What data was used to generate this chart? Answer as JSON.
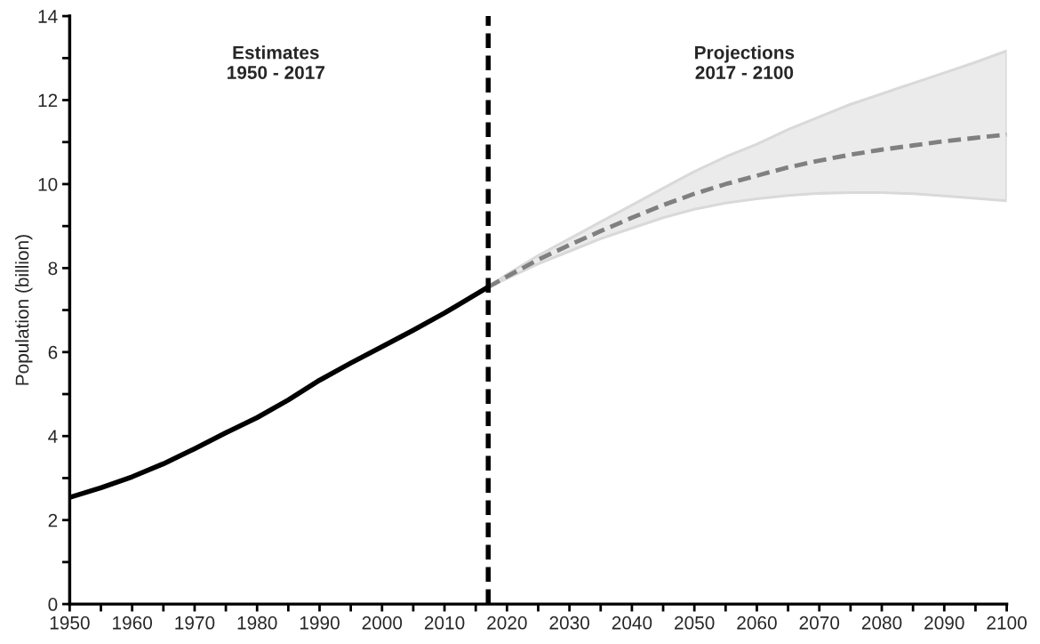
{
  "chart_data": {
    "type": "line",
    "ylabel": "Population (billion)",
    "xlim": [
      1950,
      2100
    ],
    "ylim": [
      0,
      14
    ],
    "xticks": [
      1950,
      {
        "value": 1955,
        "label": null
      },
      1960,
      {
        "value": 1965,
        "label": null
      },
      1970,
      {
        "value": 1975,
        "label": null
      },
      1980,
      {
        "value": 1985,
        "label": null
      },
      1990,
      {
        "value": 1995,
        "label": null
      },
      2000,
      {
        "value": 2005,
        "label": null
      },
      2010,
      {
        "value": 2015,
        "label": null
      },
      2020,
      {
        "value": 2025,
        "label": null
      },
      2030,
      {
        "value": 2035,
        "label": null
      },
      2040,
      {
        "value": 2045,
        "label": null
      },
      2050,
      {
        "value": 2055,
        "label": null
      },
      2060,
      {
        "value": 2065,
        "label": null
      },
      2070,
      {
        "value": 2075,
        "label": null
      },
      2080,
      {
        "value": 2085,
        "label": null
      },
      2090,
      {
        "value": 2095,
        "label": null
      },
      2100
    ],
    "yticks": [
      0,
      {
        "value": 1,
        "label": null
      },
      2,
      {
        "value": 3,
        "label": null
      },
      4,
      {
        "value": 5,
        "label": null
      },
      6,
      {
        "value": 7,
        "label": null
      },
      8,
      {
        "value": 9,
        "label": null
      },
      10,
      {
        "value": 11,
        "label": null
      },
      12,
      {
        "value": 13,
        "label": null
      },
      14
    ],
    "grid": false,
    "legend": false,
    "series": [
      {
        "color": "#000000",
        "line_style": "solid",
        "x": [
          1950,
          1955,
          1960,
          1965,
          1970,
          1975,
          1980,
          1985,
          1990,
          1995,
          2000,
          2005,
          2010,
          2017
        ],
        "values": [
          2.54,
          2.77,
          3.03,
          3.34,
          3.7,
          4.08,
          4.44,
          4.86,
          5.33,
          5.74,
          6.13,
          6.52,
          6.93,
          7.55
        ]
      },
      {
        "color": "#808080",
        "line_style": "dashed",
        "x": [
          2017,
          2020,
          2025,
          2030,
          2035,
          2040,
          2045,
          2050,
          2055,
          2060,
          2065,
          2070,
          2075,
          2080,
          2085,
          2090,
          2095,
          2100
        ],
        "values": [
          7.55,
          7.8,
          8.2,
          8.55,
          8.88,
          9.2,
          9.5,
          9.77,
          10.0,
          10.2,
          10.4,
          10.56,
          10.7,
          10.82,
          10.92,
          11.02,
          11.1,
          11.18
        ],
        "lower": [
          7.55,
          7.75,
          8.1,
          8.4,
          8.7,
          8.95,
          9.2,
          9.4,
          9.55,
          9.65,
          9.73,
          9.78,
          9.8,
          9.8,
          9.77,
          9.72,
          9.66,
          9.6
        ],
        "upper": [
          7.55,
          7.85,
          8.3,
          8.7,
          9.1,
          9.5,
          9.9,
          10.3,
          10.65,
          10.95,
          11.3,
          11.6,
          11.9,
          12.15,
          12.4,
          12.65,
          12.9,
          13.17
        ]
      }
    ],
    "ref_lines": [
      {
        "axis": "x",
        "value": 2017,
        "color": "#000000",
        "line_style": "dashed"
      }
    ],
    "annotations": [
      "Estimates\n1950 - 2017",
      "Projections\n2017 - 2100"
    ]
  }
}
